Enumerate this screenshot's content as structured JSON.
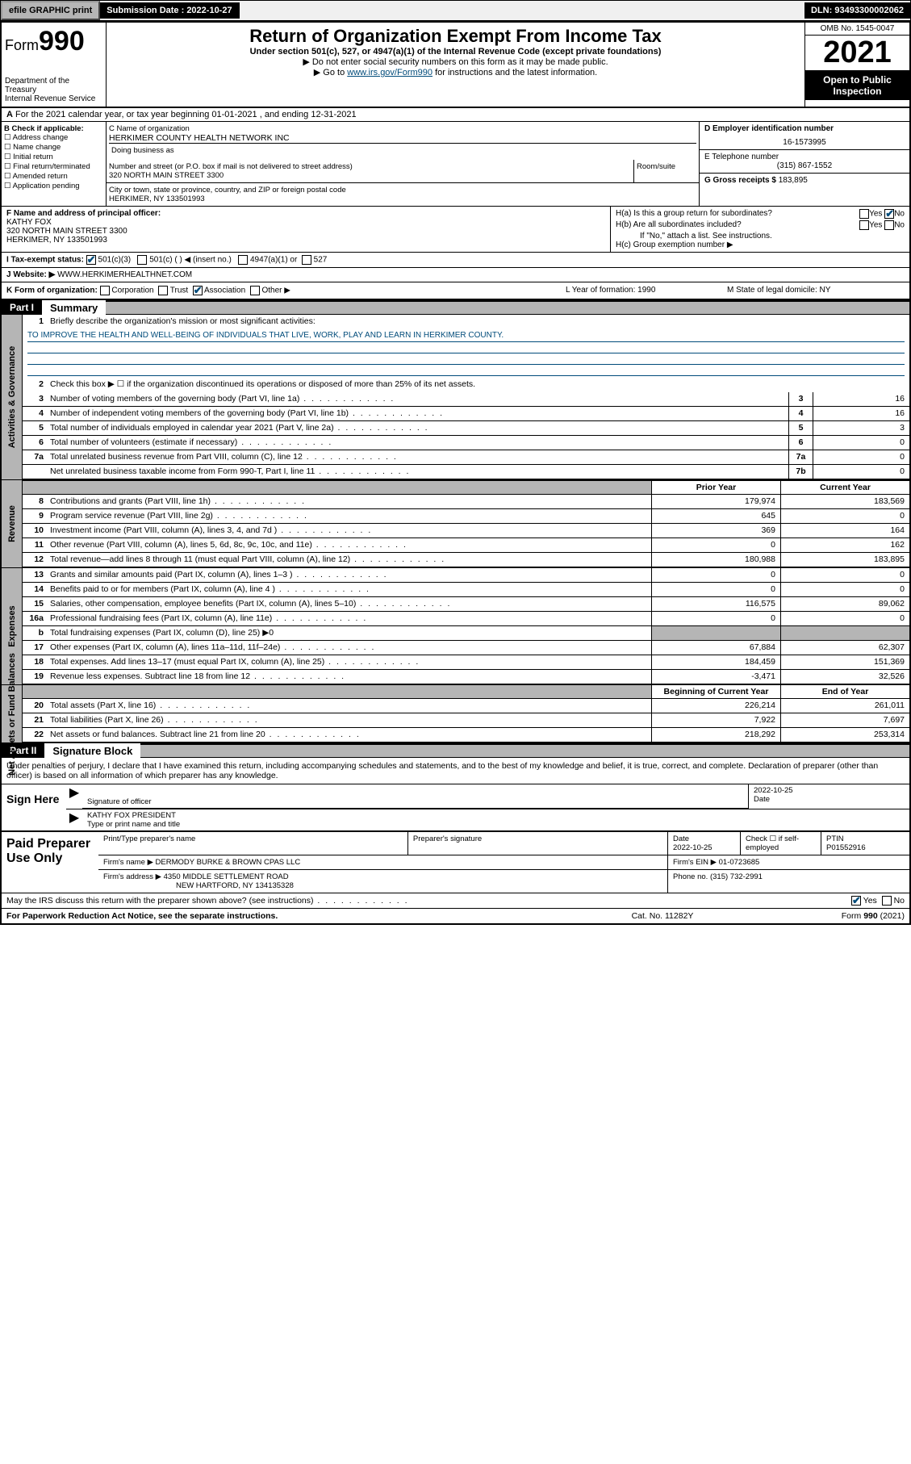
{
  "topbar": {
    "efile": "efile GRAPHIC print",
    "submission_label": "Submission Date : 2022-10-27",
    "dln": "DLN: 93493300002062"
  },
  "header": {
    "form_prefix": "Form",
    "form_num": "990",
    "dept": "Department of the Treasury\nInternal Revenue Service",
    "title": "Return of Organization Exempt From Income Tax",
    "subtitle": "Under section 501(c), 527, or 4947(a)(1) of the Internal Revenue Code (except private foundations)",
    "note1": "▶ Do not enter social security numbers on this form as it may be made public.",
    "note2_pre": "▶ Go to ",
    "note2_link": "www.irs.gov/Form990",
    "note2_post": " for instructions and the latest information.",
    "omb": "OMB No. 1545-0047",
    "year": "2021",
    "open": "Open to Public Inspection"
  },
  "rowA": {
    "label": "A",
    "text": "For the 2021 calendar year, or tax year beginning 01-01-2021   , and ending 12-31-2021"
  },
  "colB": {
    "label": "B Check if applicable:",
    "items": [
      "Address change",
      "Name change",
      "Initial return",
      "Final return/terminated",
      "Amended return",
      "Application pending"
    ]
  },
  "colC": {
    "name_label": "C Name of organization",
    "name": "HERKIMER COUNTY HEALTH NETWORK INC",
    "dba_label": "Doing business as",
    "street_label": "Number and street (or P.O. box if mail is not delivered to street address)",
    "street": "320 NORTH MAIN STREET 3300",
    "room_label": "Room/suite",
    "city_label": "City or town, state or province, country, and ZIP or foreign postal code",
    "city": "HERKIMER, NY  133501993"
  },
  "colD": {
    "ein_label": "D Employer identification number",
    "ein": "16-1573995",
    "tel_label": "E Telephone number",
    "tel": "(315) 867-1552",
    "gross_label": "G Gross receipts $ ",
    "gross": "183,895"
  },
  "colF": {
    "label": "F  Name and address of principal officer:",
    "name": "KATHY FOX",
    "addr1": "320 NORTH MAIN STREET 3300",
    "addr2": "HERKIMER, NY  133501993"
  },
  "colH": {
    "ha": "H(a)  Is this a group return for subordinates?",
    "hb": "H(b)  Are all subordinates included?",
    "hb_note": "If \"No,\" attach a list. See instructions.",
    "hc": "H(c)  Group exemption number ▶"
  },
  "rowI": {
    "label": "I   Tax-exempt status:",
    "opts": [
      "501(c)(3)",
      "501(c) (  ) ◀ (insert no.)",
      "4947(a)(1) or",
      "527"
    ]
  },
  "rowJ": {
    "label": "J   Website: ▶",
    "val": "WWW.HERKIMERHEALTHNET.COM"
  },
  "rowK": {
    "k": "K Form of organization:",
    "opts": [
      "Corporation",
      "Trust",
      "Association",
      "Other ▶"
    ],
    "l": "L Year of formation: 1990",
    "m": "M State of legal domicile: NY"
  },
  "part1": {
    "num": "Part I",
    "title": "Summary"
  },
  "summary": {
    "l1_label": "Briefly describe the organization's mission or most significant activities:",
    "l1_mission": "TO IMPROVE THE HEALTH AND WELL-BEING OF INDIVIDUALS THAT LIVE, WORK, PLAY AND LEARN IN HERKIMER COUNTY.",
    "l2": "Check this box ▶ ☐  if the organization discontinued its operations or disposed of more than 25% of its net assets.",
    "lines_boxed": [
      {
        "n": "3",
        "t": "Number of voting members of the governing body (Part VI, line 1a)",
        "b": "3",
        "v": "16"
      },
      {
        "n": "4",
        "t": "Number of independent voting members of the governing body (Part VI, line 1b)",
        "b": "4",
        "v": "16"
      },
      {
        "n": "5",
        "t": "Total number of individuals employed in calendar year 2021 (Part V, line 2a)",
        "b": "5",
        "v": "3"
      },
      {
        "n": "6",
        "t": "Total number of volunteers (estimate if necessary)",
        "b": "6",
        "v": "0"
      },
      {
        "n": "7a",
        "t": "Total unrelated business revenue from Part VIII, column (C), line 12",
        "b": "7a",
        "v": "0"
      },
      {
        "n": "",
        "t": "Net unrelated business taxable income from Form 990-T, Part I, line 11",
        "b": "7b",
        "v": "0"
      }
    ],
    "col_hdr1": "Prior Year",
    "col_hdr2": "Current Year",
    "revenue": [
      {
        "n": "8",
        "t": "Contributions and grants (Part VIII, line 1h)",
        "p": "179,974",
        "c": "183,569"
      },
      {
        "n": "9",
        "t": "Program service revenue (Part VIII, line 2g)",
        "p": "645",
        "c": "0"
      },
      {
        "n": "10",
        "t": "Investment income (Part VIII, column (A), lines 3, 4, and 7d )",
        "p": "369",
        "c": "164"
      },
      {
        "n": "11",
        "t": "Other revenue (Part VIII, column (A), lines 5, 6d, 8c, 9c, 10c, and 11e)",
        "p": "0",
        "c": "162"
      },
      {
        "n": "12",
        "t": "Total revenue—add lines 8 through 11 (must equal Part VIII, column (A), line 12)",
        "p": "180,988",
        "c": "183,895"
      }
    ],
    "expenses": [
      {
        "n": "13",
        "t": "Grants and similar amounts paid (Part IX, column (A), lines 1–3 )",
        "p": "0",
        "c": "0"
      },
      {
        "n": "14",
        "t": "Benefits paid to or for members (Part IX, column (A), line 4 )",
        "p": "0",
        "c": "0"
      },
      {
        "n": "15",
        "t": "Salaries, other compensation, employee benefits (Part IX, column (A), lines 5–10)",
        "p": "116,575",
        "c": "89,062"
      },
      {
        "n": "16a",
        "t": "Professional fundraising fees (Part IX, column (A), line 11e)",
        "p": "0",
        "c": "0"
      },
      {
        "n": "b",
        "t": "Total fundraising expenses (Part IX, column (D), line 25) ▶0",
        "p": "",
        "c": "",
        "shade": true
      },
      {
        "n": "17",
        "t": "Other expenses (Part IX, column (A), lines 11a–11d, 11f–24e)",
        "p": "67,884",
        "c": "62,307"
      },
      {
        "n": "18",
        "t": "Total expenses. Add lines 13–17 (must equal Part IX, column (A), line 25)",
        "p": "184,459",
        "c": "151,369"
      },
      {
        "n": "19",
        "t": "Revenue less expenses. Subtract line 18 from line 12",
        "p": "-3,471",
        "c": "32,526"
      }
    ],
    "bal_hdr1": "Beginning of Current Year",
    "bal_hdr2": "End of Year",
    "balances": [
      {
        "n": "20",
        "t": "Total assets (Part X, line 16)",
        "p": "226,214",
        "c": "261,011"
      },
      {
        "n": "21",
        "t": "Total liabilities (Part X, line 26)",
        "p": "7,922",
        "c": "7,697"
      },
      {
        "n": "22",
        "t": "Net assets or fund balances. Subtract line 21 from line 20",
        "p": "218,292",
        "c": "253,314"
      }
    ]
  },
  "part2": {
    "num": "Part II",
    "title": "Signature Block"
  },
  "sig": {
    "intro": "Under penalties of perjury, I declare that I have examined this return, including accompanying schedules and statements, and to the best of my knowledge and belief, it is true, correct, and complete. Declaration of preparer (other than officer) is based on all information of which preparer has any knowledge.",
    "sign_here": "Sign Here",
    "date": "2022-10-25",
    "sig_officer_lbl": "Signature of officer",
    "date_lbl": "Date",
    "name_title": "KATHY FOX  PRESIDENT",
    "name_title_lbl": "Type or print name and title"
  },
  "prep": {
    "label": "Paid Preparer Use Only",
    "h1": "Print/Type preparer's name",
    "h2": "Preparer's signature",
    "h3": "Date",
    "date": "2022-10-25",
    "h4": "Check ☐ if self-employed",
    "h5": "PTIN",
    "ptin": "P01552916",
    "firm_name_lbl": "Firm's name    ▶",
    "firm_name": "DERMODY BURKE & BROWN CPAS LLC",
    "firm_ein_lbl": "Firm's EIN ▶",
    "firm_ein": "01-0723685",
    "firm_addr_lbl": "Firm's address ▶",
    "firm_addr1": "4350 MIDDLE SETTLEMENT ROAD",
    "firm_addr2": "NEW HARTFORD, NY  134135328",
    "phone_lbl": "Phone no.",
    "phone": "(315) 732-2991"
  },
  "footer": {
    "discuss": "May the IRS discuss this return with the preparer shown above? (see instructions)",
    "paperwork": "For Paperwork Reduction Act Notice, see the separate instructions.",
    "cat": "Cat. No. 11282Y",
    "form": "Form 990 (2021)"
  },
  "colors": {
    "link": "#004b7a",
    "shade": "#b5b5b5"
  }
}
